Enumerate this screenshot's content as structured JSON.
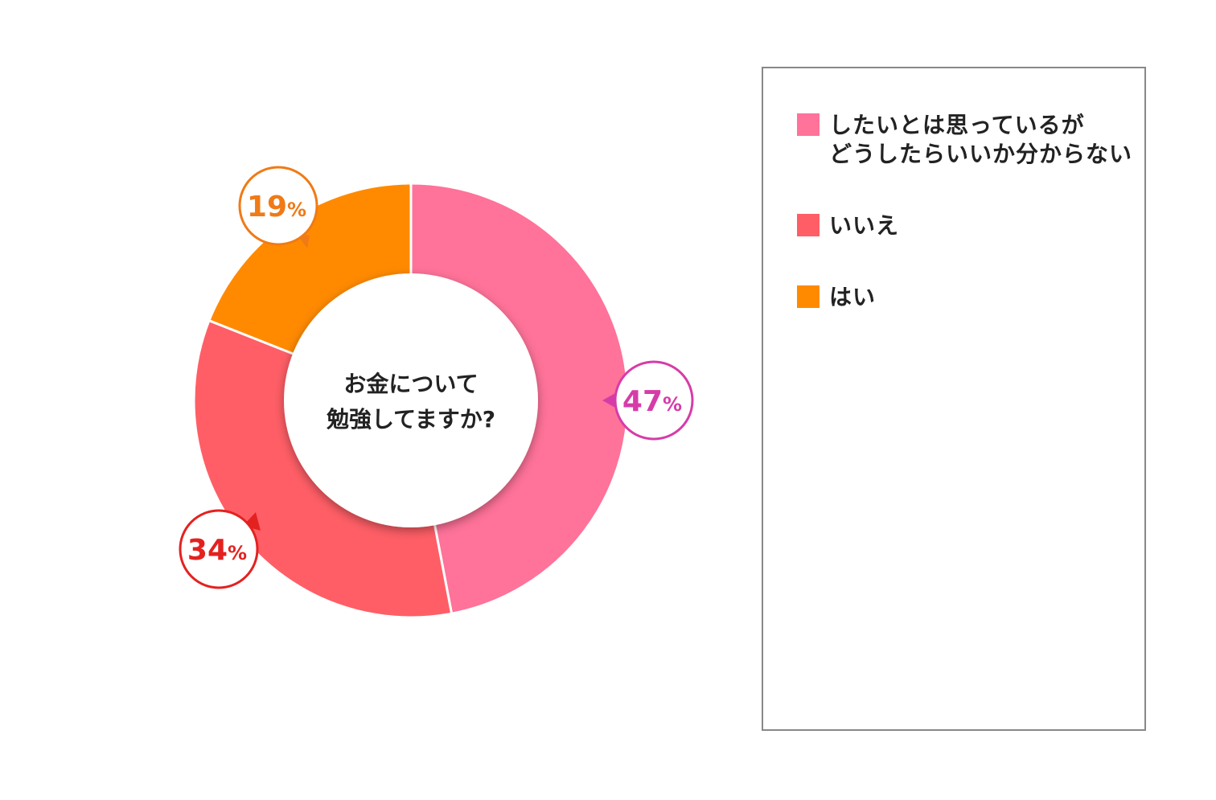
{
  "chart_data": {
    "type": "pie",
    "title": "お金について\n勉強してますか?",
    "slices": [
      {
        "label": "したいとは思っているが\nどうしたらいいか分からない",
        "value": 47,
        "display": "47",
        "color": "#FF7299",
        "badge_color": "#D63CA8"
      },
      {
        "label": "いいえ",
        "value": 34,
        "display": "34",
        "color": "#FF5E66",
        "badge_color": "#E3221F"
      },
      {
        "label": "はい",
        "value": 19,
        "display": "19",
        "color": "#FF8A00",
        "badge_color": "#F07A16"
      }
    ],
    "unit": "%",
    "legend": "right"
  }
}
